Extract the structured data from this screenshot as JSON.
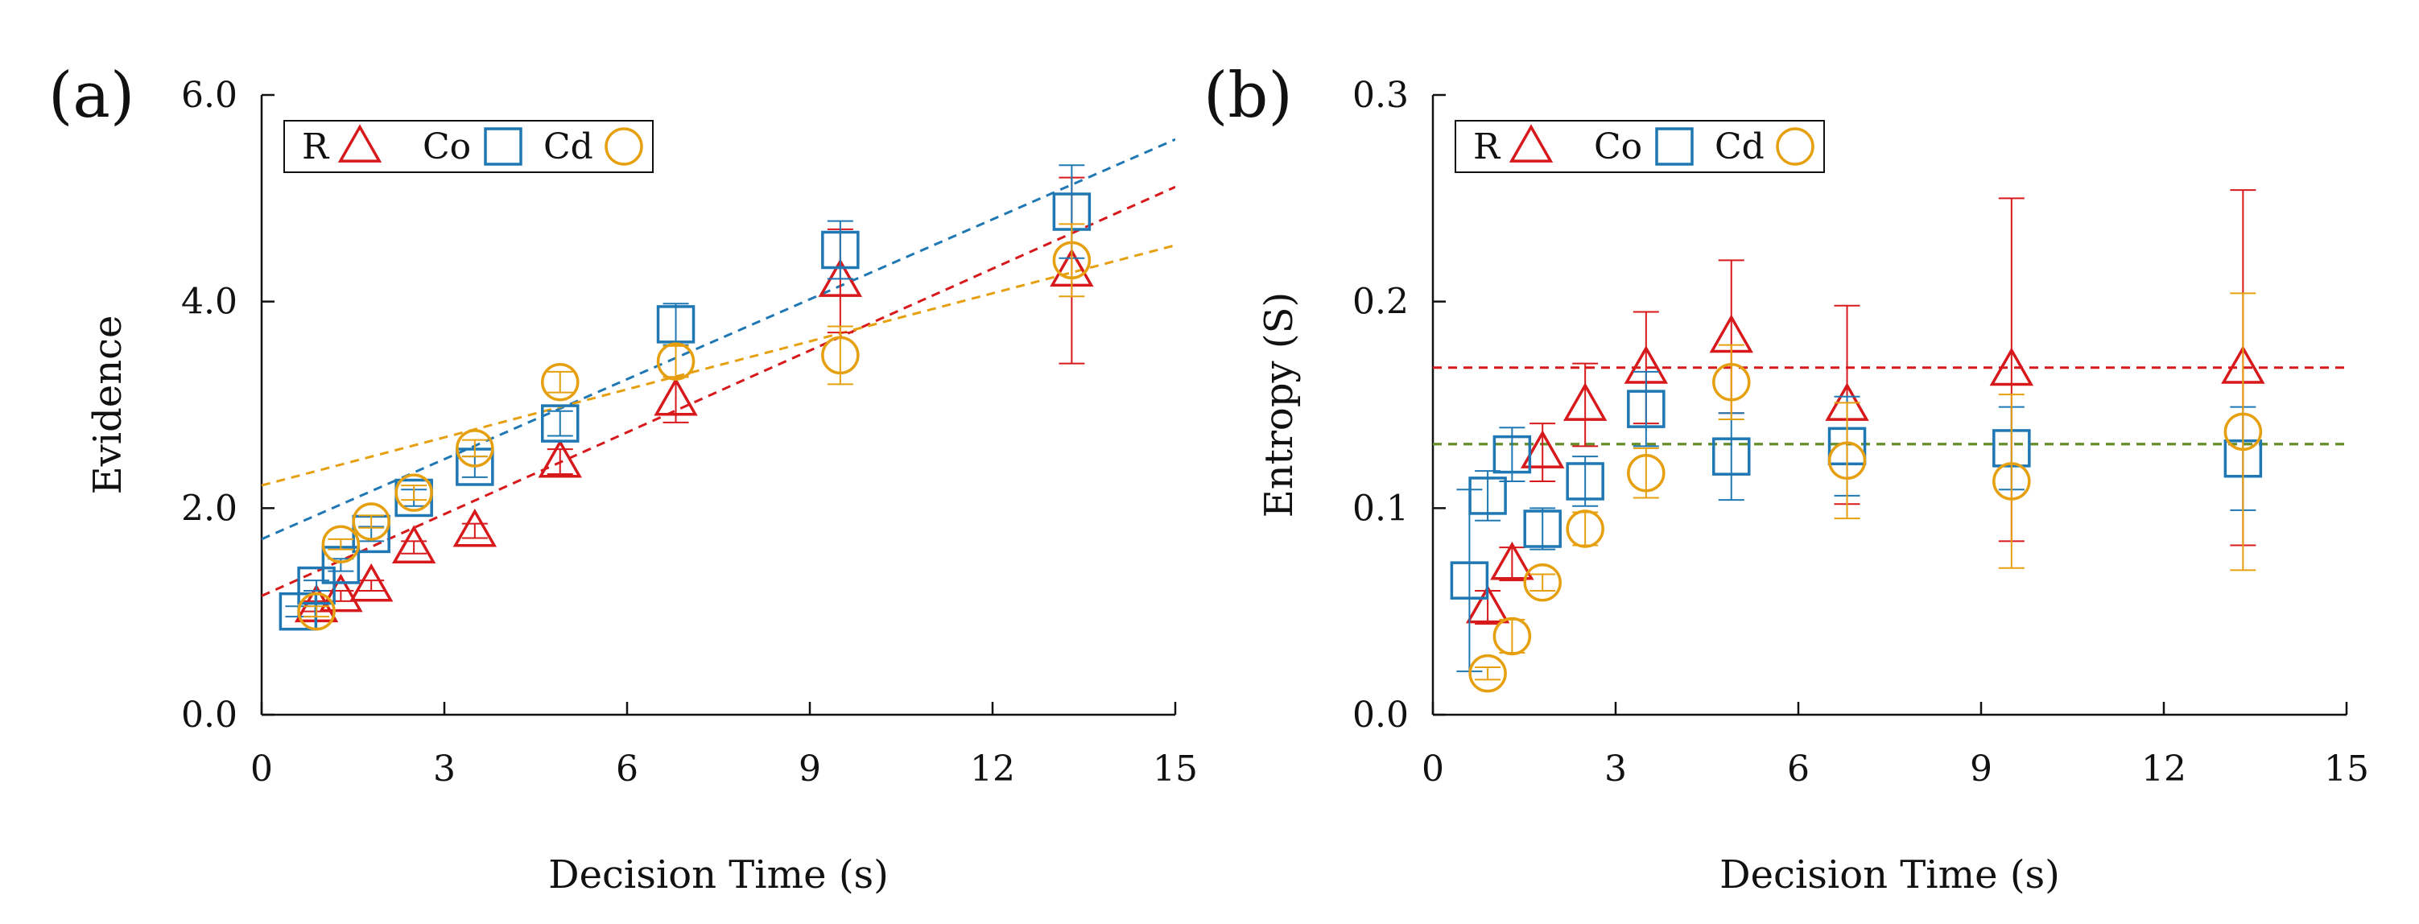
{
  "colors": {
    "R": "#d7191c",
    "Co": "#1f78b4",
    "Cd": "#e6a00f",
    "fitCd_b": "#6b8e23",
    "axis": "#111111"
  },
  "chart_data": [
    {
      "type": "scatter",
      "panel_label": "(a)",
      "title": "",
      "xlabel": "Decision Time (s)",
      "ylabel": "Evidence",
      "xlim": [
        0,
        15
      ],
      "ylim": [
        0,
        6
      ],
      "xticks": [
        0,
        3,
        6,
        9,
        12,
        15
      ],
      "xtick_labels": [
        "0",
        "3",
        "6",
        "9",
        "12",
        "15"
      ],
      "yticks": [
        0,
        2,
        4,
        6
      ],
      "ytick_labels": [
        "0.0",
        "2.0",
        "4.0",
        "6.0"
      ],
      "legend": {
        "placement": "top-left",
        "entries": [
          {
            "label": "R",
            "marker": "triangle"
          },
          {
            "label": "Co",
            "marker": "square"
          },
          {
            "label": "Cd",
            "marker": "circle"
          }
        ]
      },
      "series": [
        {
          "name": "R",
          "marker": "triangle",
          "points": [
            {
              "x": 0.9,
              "y": 1.05,
              "err": 0.05
            },
            {
              "x": 1.3,
              "y": 1.15,
              "err": 0.05
            },
            {
              "x": 1.8,
              "y": 1.25,
              "err": 0.05
            },
            {
              "x": 2.5,
              "y": 1.62,
              "err": 0.06
            },
            {
              "x": 3.5,
              "y": 1.78,
              "err": 0.07
            },
            {
              "x": 4.9,
              "y": 2.45,
              "err": 0.12
            },
            {
              "x": 6.8,
              "y": 3.05,
              "err": 0.22
            },
            {
              "x": 9.5,
              "y": 4.2,
              "err": 0.5
            },
            {
              "x": 13.3,
              "y": 4.3,
              "err": 0.9
            }
          ],
          "fit": {
            "intercept": 1.15,
            "slope": 0.264
          }
        },
        {
          "name": "Co",
          "marker": "square",
          "points": [
            {
              "x": 0.6,
              "y": 1.0,
              "err": 0.05
            },
            {
              "x": 0.9,
              "y": 1.25,
              "err": 0.05
            },
            {
              "x": 1.3,
              "y": 1.45,
              "err": 0.06
            },
            {
              "x": 1.8,
              "y": 1.75,
              "err": 0.07
            },
            {
              "x": 2.5,
              "y": 2.1,
              "err": 0.08
            },
            {
              "x": 3.5,
              "y": 2.4,
              "err": 0.1
            },
            {
              "x": 4.9,
              "y": 2.82,
              "err": 0.12
            },
            {
              "x": 6.8,
              "y": 3.78,
              "err": 0.2
            },
            {
              "x": 9.5,
              "y": 4.5,
              "err": 0.28
            },
            {
              "x": 13.3,
              "y": 4.87,
              "err": 0.45
            }
          ],
          "fit": {
            "intercept": 1.7,
            "slope": 0.258
          }
        },
        {
          "name": "Cd",
          "marker": "circle",
          "points": [
            {
              "x": 0.9,
              "y": 1.0,
              "err": 0.05
            },
            {
              "x": 1.3,
              "y": 1.65,
              "err": 0.05
            },
            {
              "x": 1.8,
              "y": 1.87,
              "err": 0.06
            },
            {
              "x": 2.5,
              "y": 2.15,
              "err": 0.07
            },
            {
              "x": 3.5,
              "y": 2.58,
              "err": 0.08
            },
            {
              "x": 4.9,
              "y": 3.22,
              "err": 0.1
            },
            {
              "x": 6.8,
              "y": 3.42,
              "err": 0.15
            },
            {
              "x": 9.5,
              "y": 3.48,
              "err": 0.28
            },
            {
              "x": 13.3,
              "y": 4.4,
              "err": 0.35
            }
          ],
          "fit": {
            "intercept": 2.22,
            "slope": 0.155
          }
        }
      ]
    },
    {
      "type": "scatter",
      "panel_label": "(b)",
      "title": "",
      "xlabel": "Decision Time (s)",
      "ylabel": "Entropy (S)",
      "xlim": [
        0,
        15
      ],
      "ylim": [
        0,
        0.3
      ],
      "xticks": [
        0,
        3,
        6,
        9,
        12,
        15
      ],
      "xtick_labels": [
        "0",
        "3",
        "6",
        "9",
        "12",
        "15"
      ],
      "yticks": [
        0,
        0.1,
        0.2,
        0.3
      ],
      "ytick_labels": [
        "0.0",
        "0.1",
        "0.2",
        "0.3"
      ],
      "legend": {
        "placement": "top-left",
        "entries": [
          {
            "label": "R",
            "marker": "triangle"
          },
          {
            "label": "Co",
            "marker": "square"
          },
          {
            "label": "Cd",
            "marker": "circle"
          }
        ]
      },
      "series": [
        {
          "name": "R",
          "marker": "triangle",
          "points": [
            {
              "x": 0.9,
              "y": 0.052,
              "err": 0.008
            },
            {
              "x": 1.3,
              "y": 0.073,
              "err": 0.008
            },
            {
              "x": 1.8,
              "y": 0.127,
              "err": 0.014
            },
            {
              "x": 2.5,
              "y": 0.15,
              "err": 0.02
            },
            {
              "x": 3.5,
              "y": 0.168,
              "err": 0.027
            },
            {
              "x": 4.9,
              "y": 0.183,
              "err": 0.037
            },
            {
              "x": 6.8,
              "y": 0.15,
              "err": 0.048
            },
            {
              "x": 9.5,
              "y": 0.167,
              "err": 0.083
            },
            {
              "x": 13.3,
              "y": 0.168,
              "err": 0.086
            }
          ],
          "fit": {
            "intercept": 0.168,
            "slope": 0
          }
        },
        {
          "name": "Co",
          "marker": "square",
          "points": [
            {
              "x": 0.6,
              "y": 0.065,
              "err": 0.044
            },
            {
              "x": 0.9,
              "y": 0.106,
              "err": 0.012
            },
            {
              "x": 1.3,
              "y": 0.126,
              "err": 0.013
            },
            {
              "x": 1.8,
              "y": 0.09,
              "err": 0.01
            },
            {
              "x": 2.5,
              "y": 0.113,
              "err": 0.012
            },
            {
              "x": 3.5,
              "y": 0.148,
              "err": 0.018
            },
            {
              "x": 4.9,
              "y": 0.125,
              "err": 0.021
            },
            {
              "x": 6.8,
              "y": 0.13,
              "err": 0.024
            },
            {
              "x": 9.5,
              "y": 0.129,
              "err": 0.02
            },
            {
              "x": 13.3,
              "y": 0.124,
              "err": 0.025
            }
          ],
          "fit": {
            "intercept": 0.131,
            "slope": 0
          }
        },
        {
          "name": "Cd",
          "marker": "circle",
          "points": [
            {
              "x": 0.9,
              "y": 0.02,
              "err": 0.003
            },
            {
              "x": 1.3,
              "y": 0.038,
              "err": 0.008
            },
            {
              "x": 1.8,
              "y": 0.064,
              "err": 0.004
            },
            {
              "x": 2.5,
              "y": 0.09,
              "err": 0.008
            },
            {
              "x": 3.5,
              "y": 0.117,
              "err": 0.012
            },
            {
              "x": 4.9,
              "y": 0.161,
              "err": 0.018
            },
            {
              "x": 6.8,
              "y": 0.123,
              "err": 0.028
            },
            {
              "x": 9.5,
              "y": 0.113,
              "err": 0.042
            },
            {
              "x": 13.3,
              "y": 0.137,
              "err": 0.067
            }
          ],
          "fit": {
            "intercept": 0.131,
            "slope": 0
          }
        }
      ]
    }
  ]
}
